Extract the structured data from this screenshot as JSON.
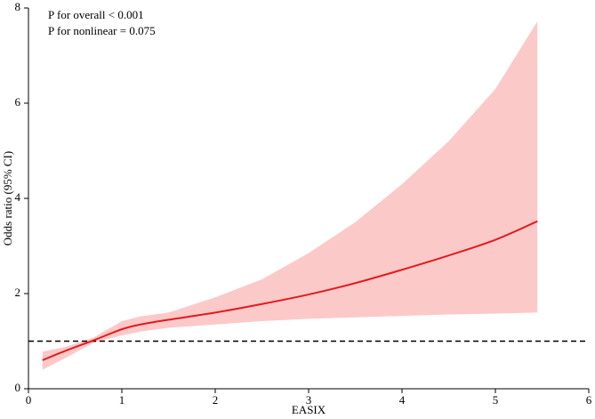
{
  "chart_data": {
    "type": "spline",
    "xlabel": "EASIX",
    "ylabel": "Odds ratio (95% CI)",
    "annotations": [
      "P for overall < 0.001",
      "P for nonlinear = 0.075"
    ],
    "x": [
      0.15,
      0.4,
      0.7,
      1.0,
      1.2,
      1.5,
      2.0,
      2.5,
      3.0,
      3.5,
      4.0,
      4.5,
      5.0,
      5.45
    ],
    "values": [
      0.6,
      0.8,
      1.02,
      1.25,
      1.35,
      1.45,
      1.6,
      1.78,
      1.98,
      2.22,
      2.5,
      2.8,
      3.13,
      3.52
    ],
    "ci_lower": [
      0.4,
      0.65,
      0.97,
      1.12,
      1.2,
      1.28,
      1.35,
      1.42,
      1.47,
      1.5,
      1.53,
      1.56,
      1.58,
      1.6
    ],
    "ci_upper": [
      0.78,
      0.88,
      1.08,
      1.42,
      1.52,
      1.6,
      1.92,
      2.3,
      2.85,
      3.5,
      4.3,
      5.2,
      6.3,
      7.72
    ],
    "color": "#e41a1c",
    "band_color": "#fcc9c9",
    "reference_line": 1,
    "xlim": [
      0,
      6
    ],
    "xticks": [
      0,
      1,
      2,
      3,
      4,
      5,
      6
    ],
    "ylim": [
      0,
      8
    ],
    "yticks": [
      0,
      2,
      4,
      6,
      8
    ]
  }
}
